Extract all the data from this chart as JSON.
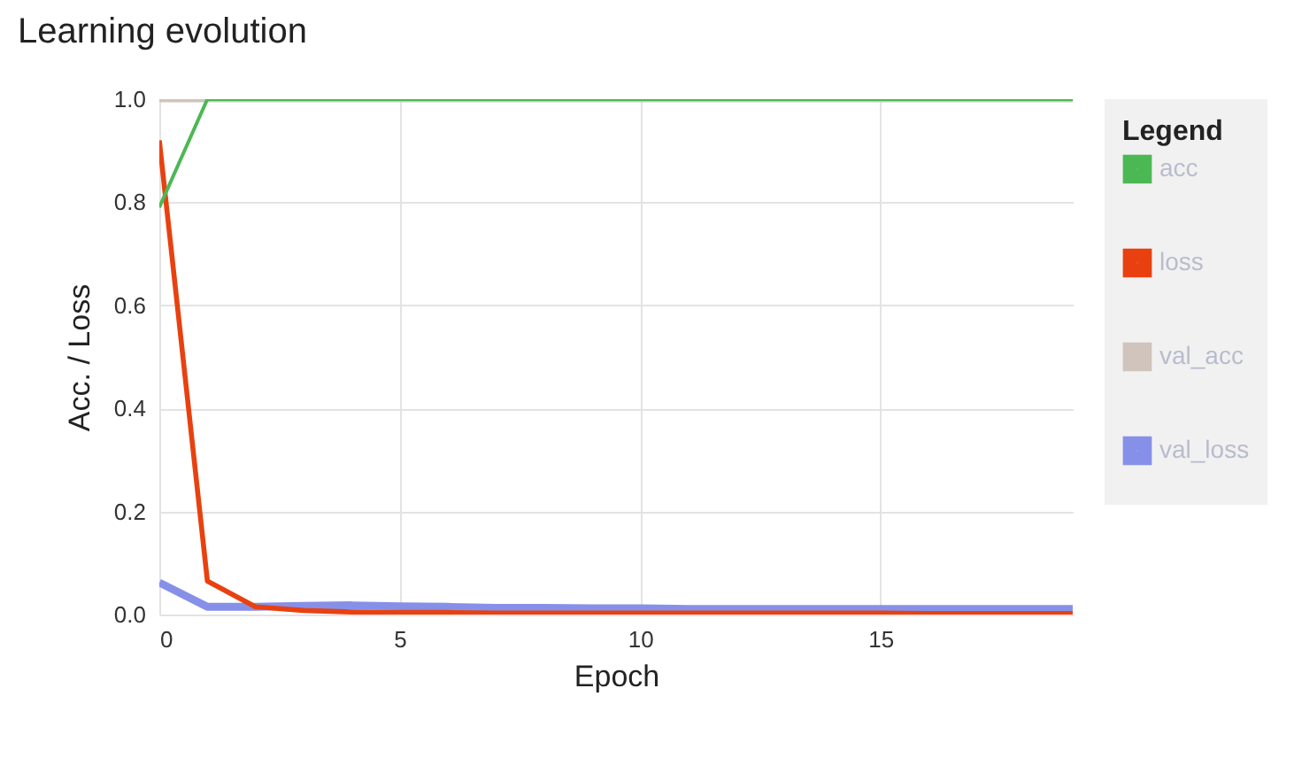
{
  "chart_data": {
    "type": "line",
    "title": "Learning evolution",
    "xlabel": "Epoch",
    "ylabel": "Acc. / Loss",
    "legend_title": "Legend",
    "x": [
      0,
      1,
      2,
      3,
      4,
      5,
      6,
      7,
      8,
      9,
      10,
      11,
      12,
      13,
      14,
      15,
      16,
      17,
      18,
      19
    ],
    "series": [
      {
        "name": "acc",
        "color": "#4cb854",
        "values": [
          0.79,
          1,
          1,
          1,
          1,
          1,
          1,
          1,
          1,
          1,
          1,
          1,
          1,
          1,
          1,
          1,
          1,
          1,
          1,
          1
        ]
      },
      {
        "name": "loss",
        "color": "#e8410f",
        "values": [
          0.92,
          0.065,
          0.015,
          0.008,
          0.005,
          0.004,
          0.004,
          0.003,
          0.003,
          0.003,
          0.003,
          0.003,
          0.003,
          0.003,
          0.003,
          0.003,
          0.002,
          0.002,
          0.002,
          0.002
        ]
      },
      {
        "name": "val_acc",
        "color": "#d0c4bc",
        "values": [
          1,
          1,
          1,
          1,
          1,
          1,
          1,
          1,
          1,
          1,
          1,
          1,
          1,
          1,
          1,
          1,
          1,
          1,
          1,
          1
        ]
      },
      {
        "name": "val_loss",
        "color": "#8790e8",
        "values": [
          0.062,
          0.015,
          0.015,
          0.017,
          0.018,
          0.016,
          0.015,
          0.013,
          0.013,
          0.012,
          0.012,
          0.011,
          0.011,
          0.011,
          0.011,
          0.011,
          0.011,
          0.011,
          0.011,
          0.011
        ]
      }
    ],
    "xlim": [
      0,
      19
    ],
    "xticks": [
      0,
      5,
      10,
      15
    ],
    "ylim": [
      0,
      1
    ],
    "yticks": [
      {
        "value": 0,
        "label": "0.0"
      },
      {
        "value": 0.2,
        "label": "0.2"
      },
      {
        "value": 0.4,
        "label": "0.4"
      },
      {
        "value": 0.6,
        "label": "0.6"
      },
      {
        "value": 0.8,
        "label": "0.8"
      },
      {
        "value": 1,
        "label": "1.0"
      }
    ],
    "grid": true,
    "legend": "right",
    "marker": "none",
    "line_style": "solid"
  }
}
